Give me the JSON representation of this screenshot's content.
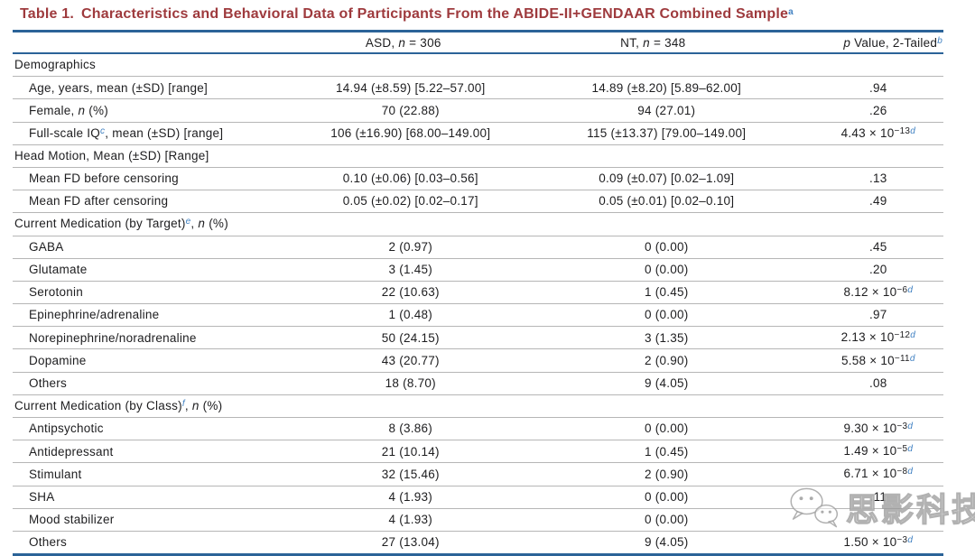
{
  "page": {
    "background": "#ffffff"
  },
  "colors": {
    "title_red": "#9e3a3d",
    "rule_blue": "#2b6398",
    "footnote_blue": "#4081c2",
    "row_line_gray": "#b6b6b6",
    "text": "#1d1d1f"
  },
  "title": {
    "segments": [
      {
        "t": "Table 1.",
        "s": "gap"
      },
      {
        "t": "Characteristics and Behavioral Data of Participants From the ABIDE-II+GENDAAR Combined Sample"
      },
      {
        "t": "a",
        "s": "fn"
      }
    ]
  },
  "table": {
    "header": [
      {
        "name": "characteristic",
        "segments": []
      },
      {
        "name": "asd",
        "segments": [
          {
            "t": "ASD, "
          },
          {
            "t": "n",
            "s": "i"
          },
          {
            "t": " = 306"
          }
        ]
      },
      {
        "name": "nt",
        "segments": [
          {
            "t": "NT, "
          },
          {
            "t": "n",
            "s": "i"
          },
          {
            "t": " = 348"
          }
        ]
      },
      {
        "name": "p-value",
        "segments": [
          {
            "t": "p",
            "s": "i"
          },
          {
            "t": " Value, 2-Tailed"
          },
          {
            "t": "b",
            "s": "fn"
          }
        ]
      }
    ],
    "rows": [
      {
        "kind": "section",
        "label": [
          {
            "t": "Demographics"
          }
        ],
        "asd": [],
        "nt": [],
        "p": []
      },
      {
        "kind": "data",
        "label": [
          {
            "t": "Age, years, mean (±SD) [range]"
          }
        ],
        "asd": [
          {
            "t": "14.94 (±8.59) [5.22–57.00]"
          }
        ],
        "nt": [
          {
            "t": "14.89 (±8.20) [5.89–62.00]"
          }
        ],
        "p": [
          {
            "t": ".94"
          }
        ]
      },
      {
        "kind": "data",
        "label": [
          {
            "t": "Female, "
          },
          {
            "t": "n",
            "s": "i"
          },
          {
            "t": " (%)"
          }
        ],
        "asd": [
          {
            "t": "70 (22.88)"
          }
        ],
        "nt": [
          {
            "t": "94 (27.01)"
          }
        ],
        "p": [
          {
            "t": ".26"
          }
        ]
      },
      {
        "kind": "data",
        "label": [
          {
            "t": "Full-scale IQ"
          },
          {
            "t": "c",
            "s": "fn"
          },
          {
            "t": ", mean (±SD) [range]"
          }
        ],
        "asd": [
          {
            "t": "106 (±16.90) [68.00–149.00]"
          }
        ],
        "nt": [
          {
            "t": "115 (±13.37) [79.00–149.00]"
          }
        ],
        "p": [
          {
            "t": "4.43 × 10"
          },
          {
            "t": "−13",
            "s": "sup"
          },
          {
            "t": "d",
            "s": "fn"
          }
        ]
      },
      {
        "kind": "section",
        "label": [
          {
            "t": "Head Motion, Mean (±SD) [Range]"
          }
        ],
        "asd": [],
        "nt": [],
        "p": []
      },
      {
        "kind": "data",
        "label": [
          {
            "t": "Mean FD before censoring"
          }
        ],
        "asd": [
          {
            "t": "0.10 (±0.06) [0.03–0.56]"
          }
        ],
        "nt": [
          {
            "t": "0.09 (±0.07) [0.02–1.09]"
          }
        ],
        "p": [
          {
            "t": ".13"
          }
        ]
      },
      {
        "kind": "data",
        "label": [
          {
            "t": "Mean FD after censoring"
          }
        ],
        "asd": [
          {
            "t": "0.05 (±0.02) [0.02–0.17]"
          }
        ],
        "nt": [
          {
            "t": "0.05 (±0.01) [0.02–0.10]"
          }
        ],
        "p": [
          {
            "t": ".49"
          }
        ]
      },
      {
        "kind": "section",
        "label": [
          {
            "t": "Current Medication (by Target)"
          },
          {
            "t": "e",
            "s": "fn"
          },
          {
            "t": ", "
          },
          {
            "t": "n",
            "s": "i"
          },
          {
            "t": " (%)"
          }
        ],
        "asd": [],
        "nt": [],
        "p": []
      },
      {
        "kind": "data",
        "label": [
          {
            "t": "GABA"
          }
        ],
        "asd": [
          {
            "t": "2 (0.97)"
          }
        ],
        "nt": [
          {
            "t": "0 (0.00)"
          }
        ],
        "p": [
          {
            "t": ".45"
          }
        ]
      },
      {
        "kind": "data",
        "label": [
          {
            "t": "Glutamate"
          }
        ],
        "asd": [
          {
            "t": "3 (1.45)"
          }
        ],
        "nt": [
          {
            "t": "0 (0.00)"
          }
        ],
        "p": [
          {
            "t": ".20"
          }
        ]
      },
      {
        "kind": "data",
        "label": [
          {
            "t": "Serotonin"
          }
        ],
        "asd": [
          {
            "t": "22 (10.63)"
          }
        ],
        "nt": [
          {
            "t": "1 (0.45)"
          }
        ],
        "p": [
          {
            "t": "8.12 × 10"
          },
          {
            "t": "−6",
            "s": "sup"
          },
          {
            "t": "d",
            "s": "fn"
          }
        ]
      },
      {
        "kind": "data",
        "label": [
          {
            "t": "Epinephrine/adrenaline"
          }
        ],
        "asd": [
          {
            "t": "1 (0.48)"
          }
        ],
        "nt": [
          {
            "t": "0 (0.00)"
          }
        ],
        "p": [
          {
            "t": ".97"
          }
        ]
      },
      {
        "kind": "data",
        "label": [
          {
            "t": "Norepinephrine/noradrenaline"
          }
        ],
        "asd": [
          {
            "t": "50 (24.15)"
          }
        ],
        "nt": [
          {
            "t": "3 (1.35)"
          }
        ],
        "p": [
          {
            "t": "2.13 × 10"
          },
          {
            "t": "−12",
            "s": "sup"
          },
          {
            "t": "d",
            "s": "fn"
          }
        ]
      },
      {
        "kind": "data",
        "label": [
          {
            "t": "Dopamine"
          }
        ],
        "asd": [
          {
            "t": "43 (20.77)"
          }
        ],
        "nt": [
          {
            "t": "2 (0.90)"
          }
        ],
        "p": [
          {
            "t": "5.58 × 10"
          },
          {
            "t": "−11",
            "s": "sup"
          },
          {
            "t": "d",
            "s": "fn"
          }
        ]
      },
      {
        "kind": "data",
        "label": [
          {
            "t": "Others"
          }
        ],
        "asd": [
          {
            "t": "18 (8.70)"
          }
        ],
        "nt": [
          {
            "t": "9 (4.05)"
          }
        ],
        "p": [
          {
            "t": ".08"
          }
        ]
      },
      {
        "kind": "section",
        "label": [
          {
            "t": "Current Medication (by Class)"
          },
          {
            "t": "f",
            "s": "fn"
          },
          {
            "t": ", "
          },
          {
            "t": "n",
            "s": "i"
          },
          {
            "t": " (%)"
          }
        ],
        "asd": [],
        "nt": [],
        "p": []
      },
      {
        "kind": "data",
        "label": [
          {
            "t": "Antipsychotic"
          }
        ],
        "asd": [
          {
            "t": "8 (3.86)"
          }
        ],
        "nt": [
          {
            "t": "0 (0.00)"
          }
        ],
        "p": [
          {
            "t": "9.30 × 10"
          },
          {
            "t": "−3",
            "s": "sup"
          },
          {
            "t": "d",
            "s": "fn"
          }
        ]
      },
      {
        "kind": "data",
        "label": [
          {
            "t": "Antidepressant"
          }
        ],
        "asd": [
          {
            "t": "21 (10.14)"
          }
        ],
        "nt": [
          {
            "t": "1 (0.45)"
          }
        ],
        "p": [
          {
            "t": "1.49 × 10"
          },
          {
            "t": "−5",
            "s": "sup"
          },
          {
            "t": "d",
            "s": "fn"
          }
        ]
      },
      {
        "kind": "data",
        "label": [
          {
            "t": "Stimulant"
          }
        ],
        "asd": [
          {
            "t": "32 (15.46)"
          }
        ],
        "nt": [
          {
            "t": "2 (0.90)"
          }
        ],
        "p": [
          {
            "t": "6.71 × 10"
          },
          {
            "t": "−8",
            "s": "sup"
          },
          {
            "t": "d",
            "s": "fn"
          }
        ]
      },
      {
        "kind": "data",
        "label": [
          {
            "t": "SHA"
          }
        ],
        "asd": [
          {
            "t": "4 (1.93)"
          }
        ],
        "nt": [
          {
            "t": "0 (0.00)"
          }
        ],
        "p": [
          {
            "t": ".11"
          }
        ]
      },
      {
        "kind": "data",
        "label": [
          {
            "t": "Mood stabilizer"
          }
        ],
        "asd": [
          {
            "t": "4 (1.93)"
          }
        ],
        "nt": [
          {
            "t": "0 (0.00)"
          }
        ],
        "p": []
      },
      {
        "kind": "data",
        "label": [
          {
            "t": "Others"
          }
        ],
        "asd": [
          {
            "t": "27 (13.04)"
          }
        ],
        "nt": [
          {
            "t": "9 (4.05)"
          }
        ],
        "p": [
          {
            "t": "1.50 × 10"
          },
          {
            "t": "−3",
            "s": "sup"
          },
          {
            "t": "d",
            "s": "fn"
          }
        ]
      }
    ]
  },
  "watermark": {
    "text": "思影科技",
    "icon": "wechat-chat-bubbles"
  }
}
